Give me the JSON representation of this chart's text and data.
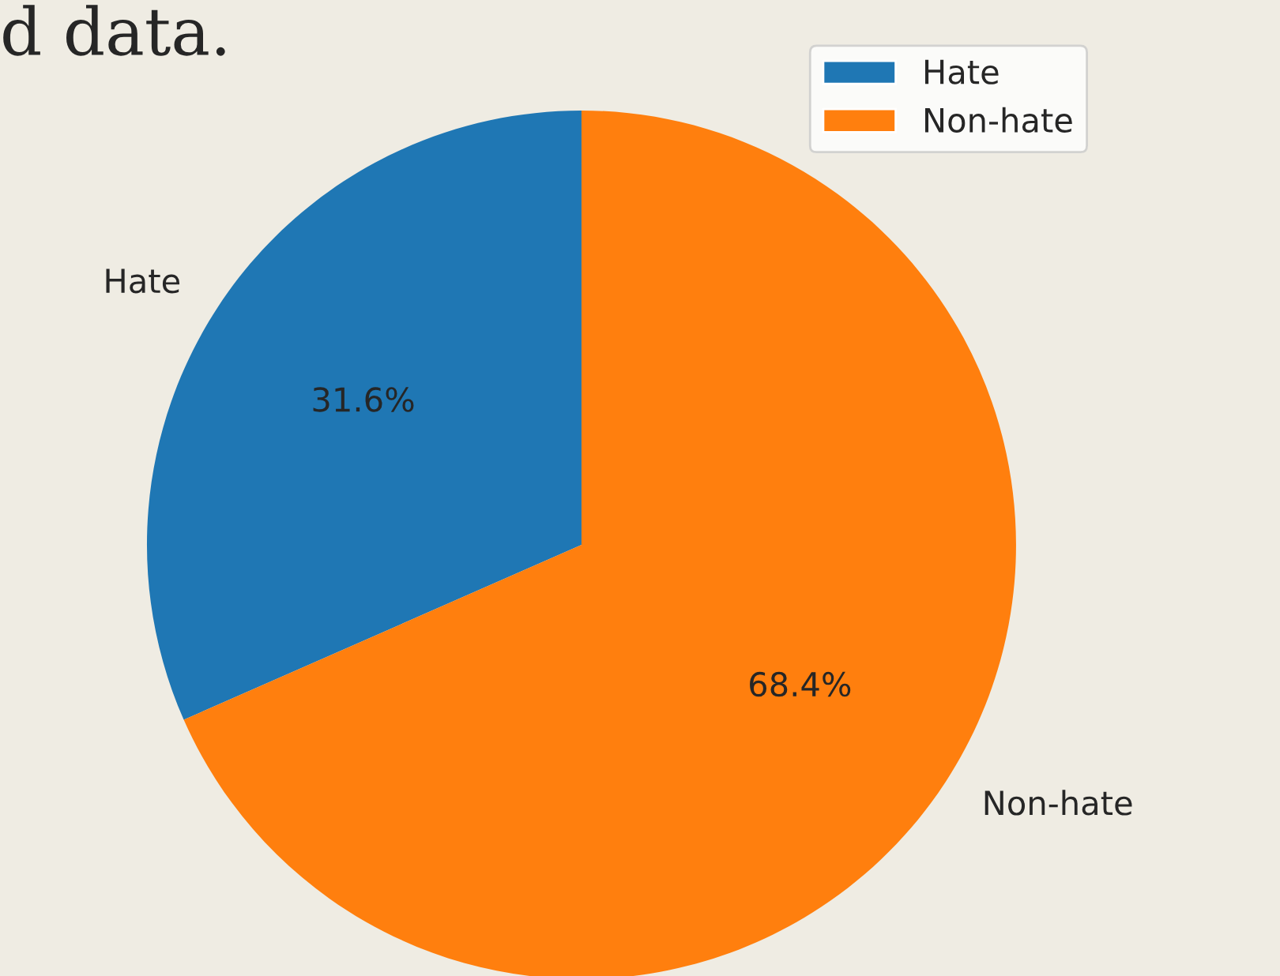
{
  "chart_data": {
    "type": "pie",
    "categories": [
      "Hate",
      "Non-hate"
    ],
    "values": [
      31.6,
      68.4
    ],
    "colors": [
      "#1f77b4",
      "#ff7f0e"
    ],
    "value_labels": [
      "31.6%",
      "68.4%"
    ],
    "legend": "top right",
    "annotations": [
      "d data."
    ]
  }
}
